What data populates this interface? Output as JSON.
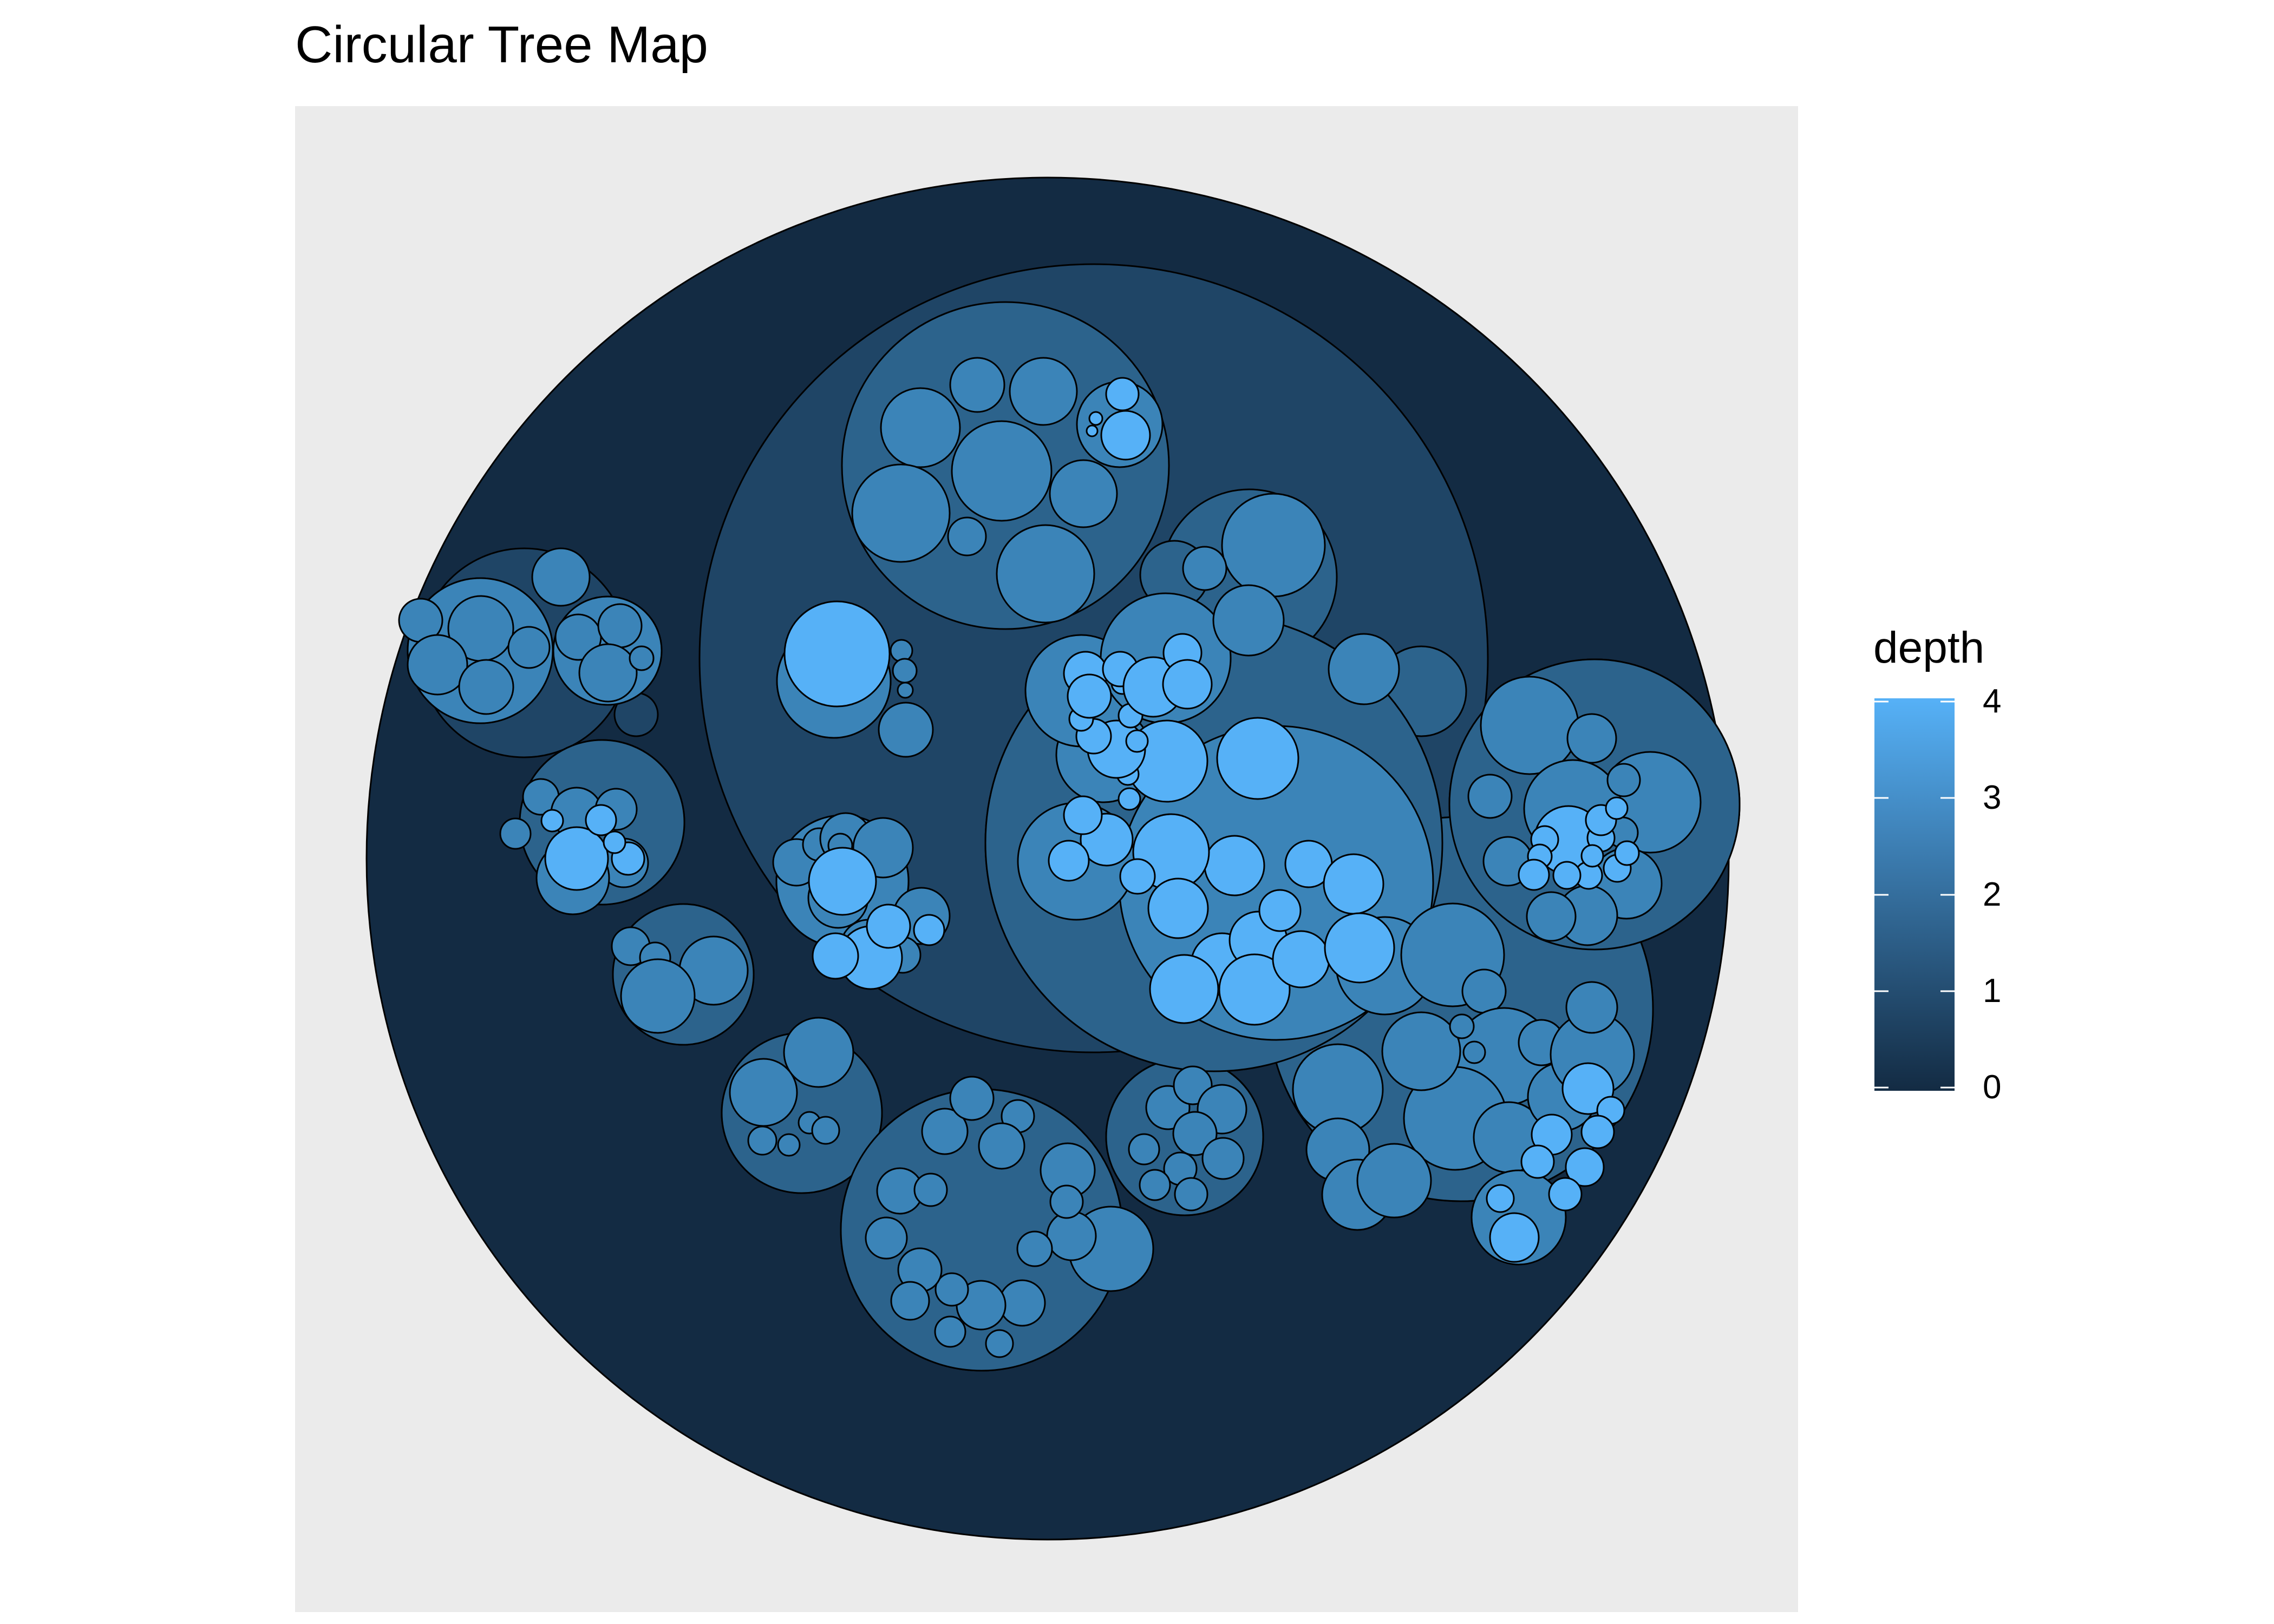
{
  "chart_data": {
    "type": "circle-packing",
    "title": "Circular Tree Map",
    "legend": {
      "title": "depth",
      "placement": "right",
      "ticks": [
        "4",
        "3",
        "2",
        "1",
        "0"
      ],
      "range": [
        0,
        4
      ]
    },
    "colors": {
      "depth_0": "#132B43",
      "depth_1": "#1F4566",
      "depth_2": "#2C638C",
      "depth_3": "#3B84B8",
      "depth_4": "#56B1F7",
      "panel_background": "#EBEBEB",
      "stroke": "#000000"
    },
    "depth_levels": [
      0,
      1,
      2,
      3,
      4
    ]
  }
}
